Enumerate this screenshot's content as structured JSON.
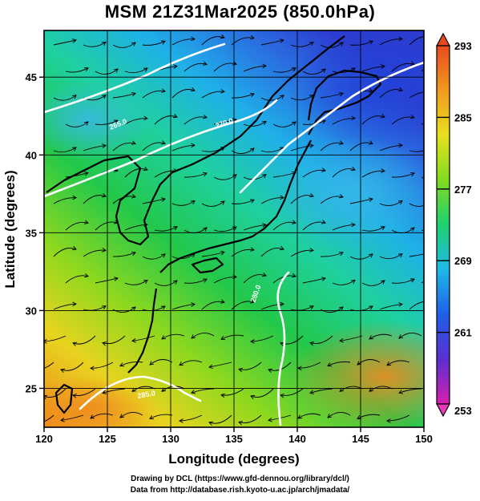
{
  "title": "MSM 21Z31Mar2025 (850.0hPa)",
  "credits": {
    "line1": "Drawing by DCL (https://www.gfd-dennou.org/library/dcl/)",
    "line2": "Data from http://database.rish.kyoto-u.ac.jp/arch/jmadata/"
  },
  "map": {
    "xlabel": "Longitude (degrees)",
    "ylabel": "Latitude  (degrees)",
    "xlim": [
      120,
      150
    ],
    "ylim": [
      22.5,
      48
    ],
    "x_ticks": [
      "120",
      "125",
      "130",
      "135",
      "140",
      "145",
      "150"
    ],
    "y_ticks": [
      "25",
      "30",
      "35",
      "40",
      "45"
    ],
    "grid": true
  },
  "colorbar": {
    "ticks": [
      "293",
      "285",
      "277",
      "269",
      "261",
      "253"
    ],
    "range": [
      253,
      293
    ],
    "colors": [
      "#d81fb0",
      "#5a2fd0",
      "#1f5fe8",
      "#1fb8e8",
      "#1fd070",
      "#7fdc1f",
      "#e8e01f",
      "#f09a1f",
      "#e84a1f"
    ]
  },
  "contours": [
    {
      "value": "285.0"
    },
    {
      "value": "280.0"
    },
    {
      "value": "270.0"
    },
    {
      "value": "265.0"
    }
  ]
}
